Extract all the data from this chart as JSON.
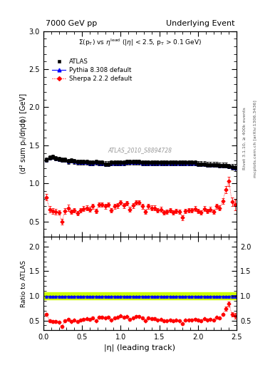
{
  "title_left": "7000 GeV pp",
  "title_right": "Underlying Event",
  "subtitle": "Σ(pₜ) vs ηˡᵉᵃᵈ (|η| < 2.5, pₜ > 0.1 GeV)",
  "subtitle_plain": "  Σ(p_T) vs η^{lead} (|η| < 2.5, p_T > 0.1 GeV)",
  "xlabel": "|η| (leading track)",
  "ylabel": "⟨d² sum pₜ/dηdϕ⟩ [GeV]",
  "ylabel_ratio": "Ratio to ATLAS",
  "watermark": "ATLAS_2010_S8894728",
  "right_label1": "Rivet 3.1.10, ≥ 400k events",
  "right_label2": "mcplots.cern.ch [arXiv:1306.3436]",
  "ylim_main": [
    0.3,
    3.0
  ],
  "ylim_ratio": [
    0.3,
    2.2
  ],
  "xlim": [
    0.0,
    2.5
  ],
  "yticks_main": [
    0.5,
    1.0,
    1.5,
    2.0,
    2.5,
    3.0
  ],
  "yticks_ratio": [
    0.5,
    1.0,
    1.5,
    2.0
  ],
  "atlas_color": "#000000",
  "pythia_color": "#0000ff",
  "sherpa_color": "#ff0000",
  "band_color": "#ccff00",
  "band_line_color": "#007700",
  "atlas_x": [
    0.04,
    0.08,
    0.12,
    0.16,
    0.2,
    0.24,
    0.28,
    0.32,
    0.36,
    0.4,
    0.44,
    0.48,
    0.52,
    0.56,
    0.6,
    0.64,
    0.68,
    0.72,
    0.76,
    0.8,
    0.84,
    0.88,
    0.92,
    0.96,
    1.0,
    1.04,
    1.08,
    1.12,
    1.16,
    1.2,
    1.24,
    1.28,
    1.32,
    1.36,
    1.4,
    1.44,
    1.48,
    1.52,
    1.56,
    1.6,
    1.64,
    1.68,
    1.72,
    1.76,
    1.8,
    1.84,
    1.88,
    1.92,
    1.96,
    2.0,
    2.04,
    2.08,
    2.12,
    2.16,
    2.2,
    2.24,
    2.28,
    2.32,
    2.36,
    2.4,
    2.44,
    2.48
  ],
  "atlas_y": [
    1.31,
    1.34,
    1.35,
    1.33,
    1.32,
    1.31,
    1.31,
    1.29,
    1.3,
    1.29,
    1.28,
    1.28,
    1.28,
    1.28,
    1.27,
    1.27,
    1.28,
    1.27,
    1.27,
    1.26,
    1.26,
    1.27,
    1.27,
    1.27,
    1.27,
    1.27,
    1.28,
    1.28,
    1.28,
    1.28,
    1.28,
    1.27,
    1.27,
    1.27,
    1.27,
    1.27,
    1.27,
    1.27,
    1.27,
    1.27,
    1.27,
    1.27,
    1.27,
    1.27,
    1.27,
    1.27,
    1.27,
    1.27,
    1.27,
    1.26,
    1.26,
    1.26,
    1.25,
    1.25,
    1.25,
    1.25,
    1.24,
    1.24,
    1.24,
    1.23,
    1.22,
    1.21
  ],
  "atlas_yerr": [
    0.03,
    0.03,
    0.03,
    0.03,
    0.03,
    0.03,
    0.03,
    0.03,
    0.03,
    0.03,
    0.03,
    0.03,
    0.03,
    0.03,
    0.03,
    0.03,
    0.03,
    0.03,
    0.03,
    0.03,
    0.03,
    0.03,
    0.03,
    0.03,
    0.03,
    0.03,
    0.03,
    0.03,
    0.03,
    0.03,
    0.03,
    0.03,
    0.03,
    0.03,
    0.03,
    0.03,
    0.03,
    0.03,
    0.03,
    0.03,
    0.03,
    0.03,
    0.03,
    0.03,
    0.03,
    0.03,
    0.03,
    0.03,
    0.03,
    0.03,
    0.03,
    0.03,
    0.03,
    0.03,
    0.03,
    0.03,
    0.03,
    0.03,
    0.03,
    0.03,
    0.04,
    0.05
  ],
  "pythia_x": [
    0.04,
    0.08,
    0.12,
    0.16,
    0.2,
    0.24,
    0.28,
    0.32,
    0.36,
    0.4,
    0.44,
    0.48,
    0.52,
    0.56,
    0.6,
    0.64,
    0.68,
    0.72,
    0.76,
    0.8,
    0.84,
    0.88,
    0.92,
    0.96,
    1.0,
    1.04,
    1.08,
    1.12,
    1.16,
    1.2,
    1.24,
    1.28,
    1.32,
    1.36,
    1.4,
    1.44,
    1.48,
    1.52,
    1.56,
    1.6,
    1.64,
    1.68,
    1.72,
    1.76,
    1.8,
    1.84,
    1.88,
    1.92,
    1.96,
    2.0,
    2.04,
    2.08,
    2.12,
    2.16,
    2.2,
    2.24,
    2.28,
    2.32,
    2.36,
    2.4,
    2.44,
    2.48
  ],
  "pythia_y": [
    1.3,
    1.33,
    1.34,
    1.32,
    1.31,
    1.3,
    1.3,
    1.28,
    1.29,
    1.28,
    1.27,
    1.27,
    1.27,
    1.27,
    1.26,
    1.26,
    1.27,
    1.26,
    1.26,
    1.25,
    1.25,
    1.26,
    1.26,
    1.26,
    1.26,
    1.26,
    1.27,
    1.27,
    1.27,
    1.27,
    1.27,
    1.26,
    1.26,
    1.26,
    1.26,
    1.26,
    1.26,
    1.26,
    1.26,
    1.26,
    1.26,
    1.26,
    1.26,
    1.26,
    1.26,
    1.26,
    1.26,
    1.26,
    1.26,
    1.25,
    1.25,
    1.25,
    1.24,
    1.24,
    1.24,
    1.24,
    1.23,
    1.23,
    1.23,
    1.22,
    1.21,
    1.2
  ],
  "pythia_yerr": [
    0.01,
    0.01,
    0.01,
    0.01,
    0.01,
    0.01,
    0.01,
    0.01,
    0.01,
    0.01,
    0.01,
    0.01,
    0.01,
    0.01,
    0.01,
    0.01,
    0.01,
    0.01,
    0.01,
    0.01,
    0.01,
    0.01,
    0.01,
    0.01,
    0.01,
    0.01,
    0.01,
    0.01,
    0.01,
    0.01,
    0.01,
    0.01,
    0.01,
    0.01,
    0.01,
    0.01,
    0.01,
    0.01,
    0.01,
    0.01,
    0.01,
    0.01,
    0.01,
    0.01,
    0.01,
    0.01,
    0.01,
    0.01,
    0.01,
    0.01,
    0.01,
    0.01,
    0.01,
    0.01,
    0.01,
    0.01,
    0.01,
    0.01,
    0.01,
    0.01,
    0.02,
    0.02
  ],
  "sherpa_x": [
    0.04,
    0.08,
    0.12,
    0.16,
    0.2,
    0.24,
    0.28,
    0.32,
    0.36,
    0.4,
    0.44,
    0.48,
    0.52,
    0.56,
    0.6,
    0.64,
    0.68,
    0.72,
    0.76,
    0.8,
    0.84,
    0.88,
    0.92,
    0.96,
    1.0,
    1.04,
    1.08,
    1.12,
    1.16,
    1.2,
    1.24,
    1.28,
    1.32,
    1.36,
    1.4,
    1.44,
    1.48,
    1.52,
    1.56,
    1.6,
    1.64,
    1.68,
    1.72,
    1.76,
    1.8,
    1.84,
    1.88,
    1.92,
    1.96,
    2.0,
    2.04,
    2.08,
    2.12,
    2.16,
    2.2,
    2.24,
    2.28,
    2.32,
    2.36,
    2.4,
    2.44,
    2.48
  ],
  "sherpa_y": [
    0.82,
    0.66,
    0.64,
    0.63,
    0.62,
    0.5,
    0.64,
    0.68,
    0.63,
    0.65,
    0.61,
    0.65,
    0.67,
    0.68,
    0.66,
    0.7,
    0.64,
    0.72,
    0.72,
    0.7,
    0.72,
    0.65,
    0.7,
    0.71,
    0.75,
    0.71,
    0.74,
    0.66,
    0.71,
    0.75,
    0.75,
    0.7,
    0.63,
    0.7,
    0.68,
    0.68,
    0.65,
    0.66,
    0.62,
    0.63,
    0.65,
    0.62,
    0.64,
    0.63,
    0.55,
    0.64,
    0.65,
    0.65,
    0.67,
    0.64,
    0.62,
    0.67,
    0.64,
    0.66,
    0.63,
    0.7,
    0.68,
    0.77,
    0.92,
    1.03,
    0.76,
    0.72
  ],
  "sherpa_yerr": [
    0.04,
    0.04,
    0.04,
    0.04,
    0.03,
    0.04,
    0.04,
    0.04,
    0.03,
    0.03,
    0.03,
    0.03,
    0.03,
    0.03,
    0.03,
    0.03,
    0.03,
    0.03,
    0.03,
    0.03,
    0.03,
    0.03,
    0.03,
    0.03,
    0.03,
    0.03,
    0.03,
    0.03,
    0.03,
    0.03,
    0.03,
    0.03,
    0.03,
    0.03,
    0.03,
    0.03,
    0.03,
    0.03,
    0.03,
    0.03,
    0.03,
    0.03,
    0.03,
    0.03,
    0.03,
    0.03,
    0.03,
    0.03,
    0.03,
    0.03,
    0.03,
    0.03,
    0.03,
    0.03,
    0.03,
    0.03,
    0.03,
    0.04,
    0.05,
    0.06,
    0.06,
    0.07
  ],
  "band_y_low": 0.93,
  "band_y_high": 1.07
}
